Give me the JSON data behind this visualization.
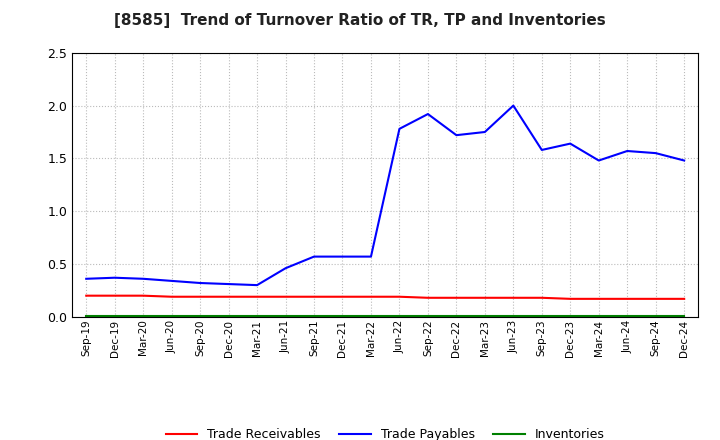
{
  "title": "[8585]  Trend of Turnover Ratio of TR, TP and Inventories",
  "labels": [
    "Sep-19",
    "Dec-19",
    "Mar-20",
    "Jun-20",
    "Sep-20",
    "Dec-20",
    "Mar-21",
    "Jun-21",
    "Sep-21",
    "Dec-21",
    "Mar-22",
    "Jun-22",
    "Sep-22",
    "Dec-22",
    "Mar-23",
    "Jun-23",
    "Sep-23",
    "Dec-23",
    "Mar-24",
    "Jun-24",
    "Sep-24",
    "Dec-24"
  ],
  "trade_receivables": [
    0.2,
    0.2,
    0.2,
    0.19,
    0.19,
    0.19,
    0.19,
    0.19,
    0.19,
    0.19,
    0.19,
    0.19,
    0.18,
    0.18,
    0.18,
    0.18,
    0.18,
    0.17,
    0.17,
    0.17,
    0.17,
    0.17
  ],
  "trade_payables": [
    0.36,
    0.37,
    0.36,
    0.34,
    0.32,
    0.31,
    0.3,
    0.46,
    0.57,
    0.57,
    0.57,
    1.78,
    1.92,
    1.72,
    1.75,
    2.0,
    1.58,
    1.64,
    1.48,
    1.57,
    1.55,
    1.48
  ],
  "inventories": [
    0.01,
    0.01,
    0.01,
    0.01,
    0.01,
    0.01,
    0.01,
    0.01,
    0.01,
    0.01,
    0.01,
    0.01,
    0.01,
    0.01,
    0.01,
    0.01,
    0.01,
    0.01,
    0.01,
    0.01,
    0.01,
    0.01
  ],
  "tr_color": "#FF0000",
  "tp_color": "#0000FF",
  "inv_color": "#008000",
  "ylim": [
    0.0,
    2.5
  ],
  "yticks": [
    0.0,
    0.5,
    1.0,
    1.5,
    2.0,
    2.5
  ],
  "background_color": "#FFFFFF",
  "grid_color": "#BBBBBB",
  "legend_labels": [
    "Trade Receivables",
    "Trade Payables",
    "Inventories"
  ]
}
